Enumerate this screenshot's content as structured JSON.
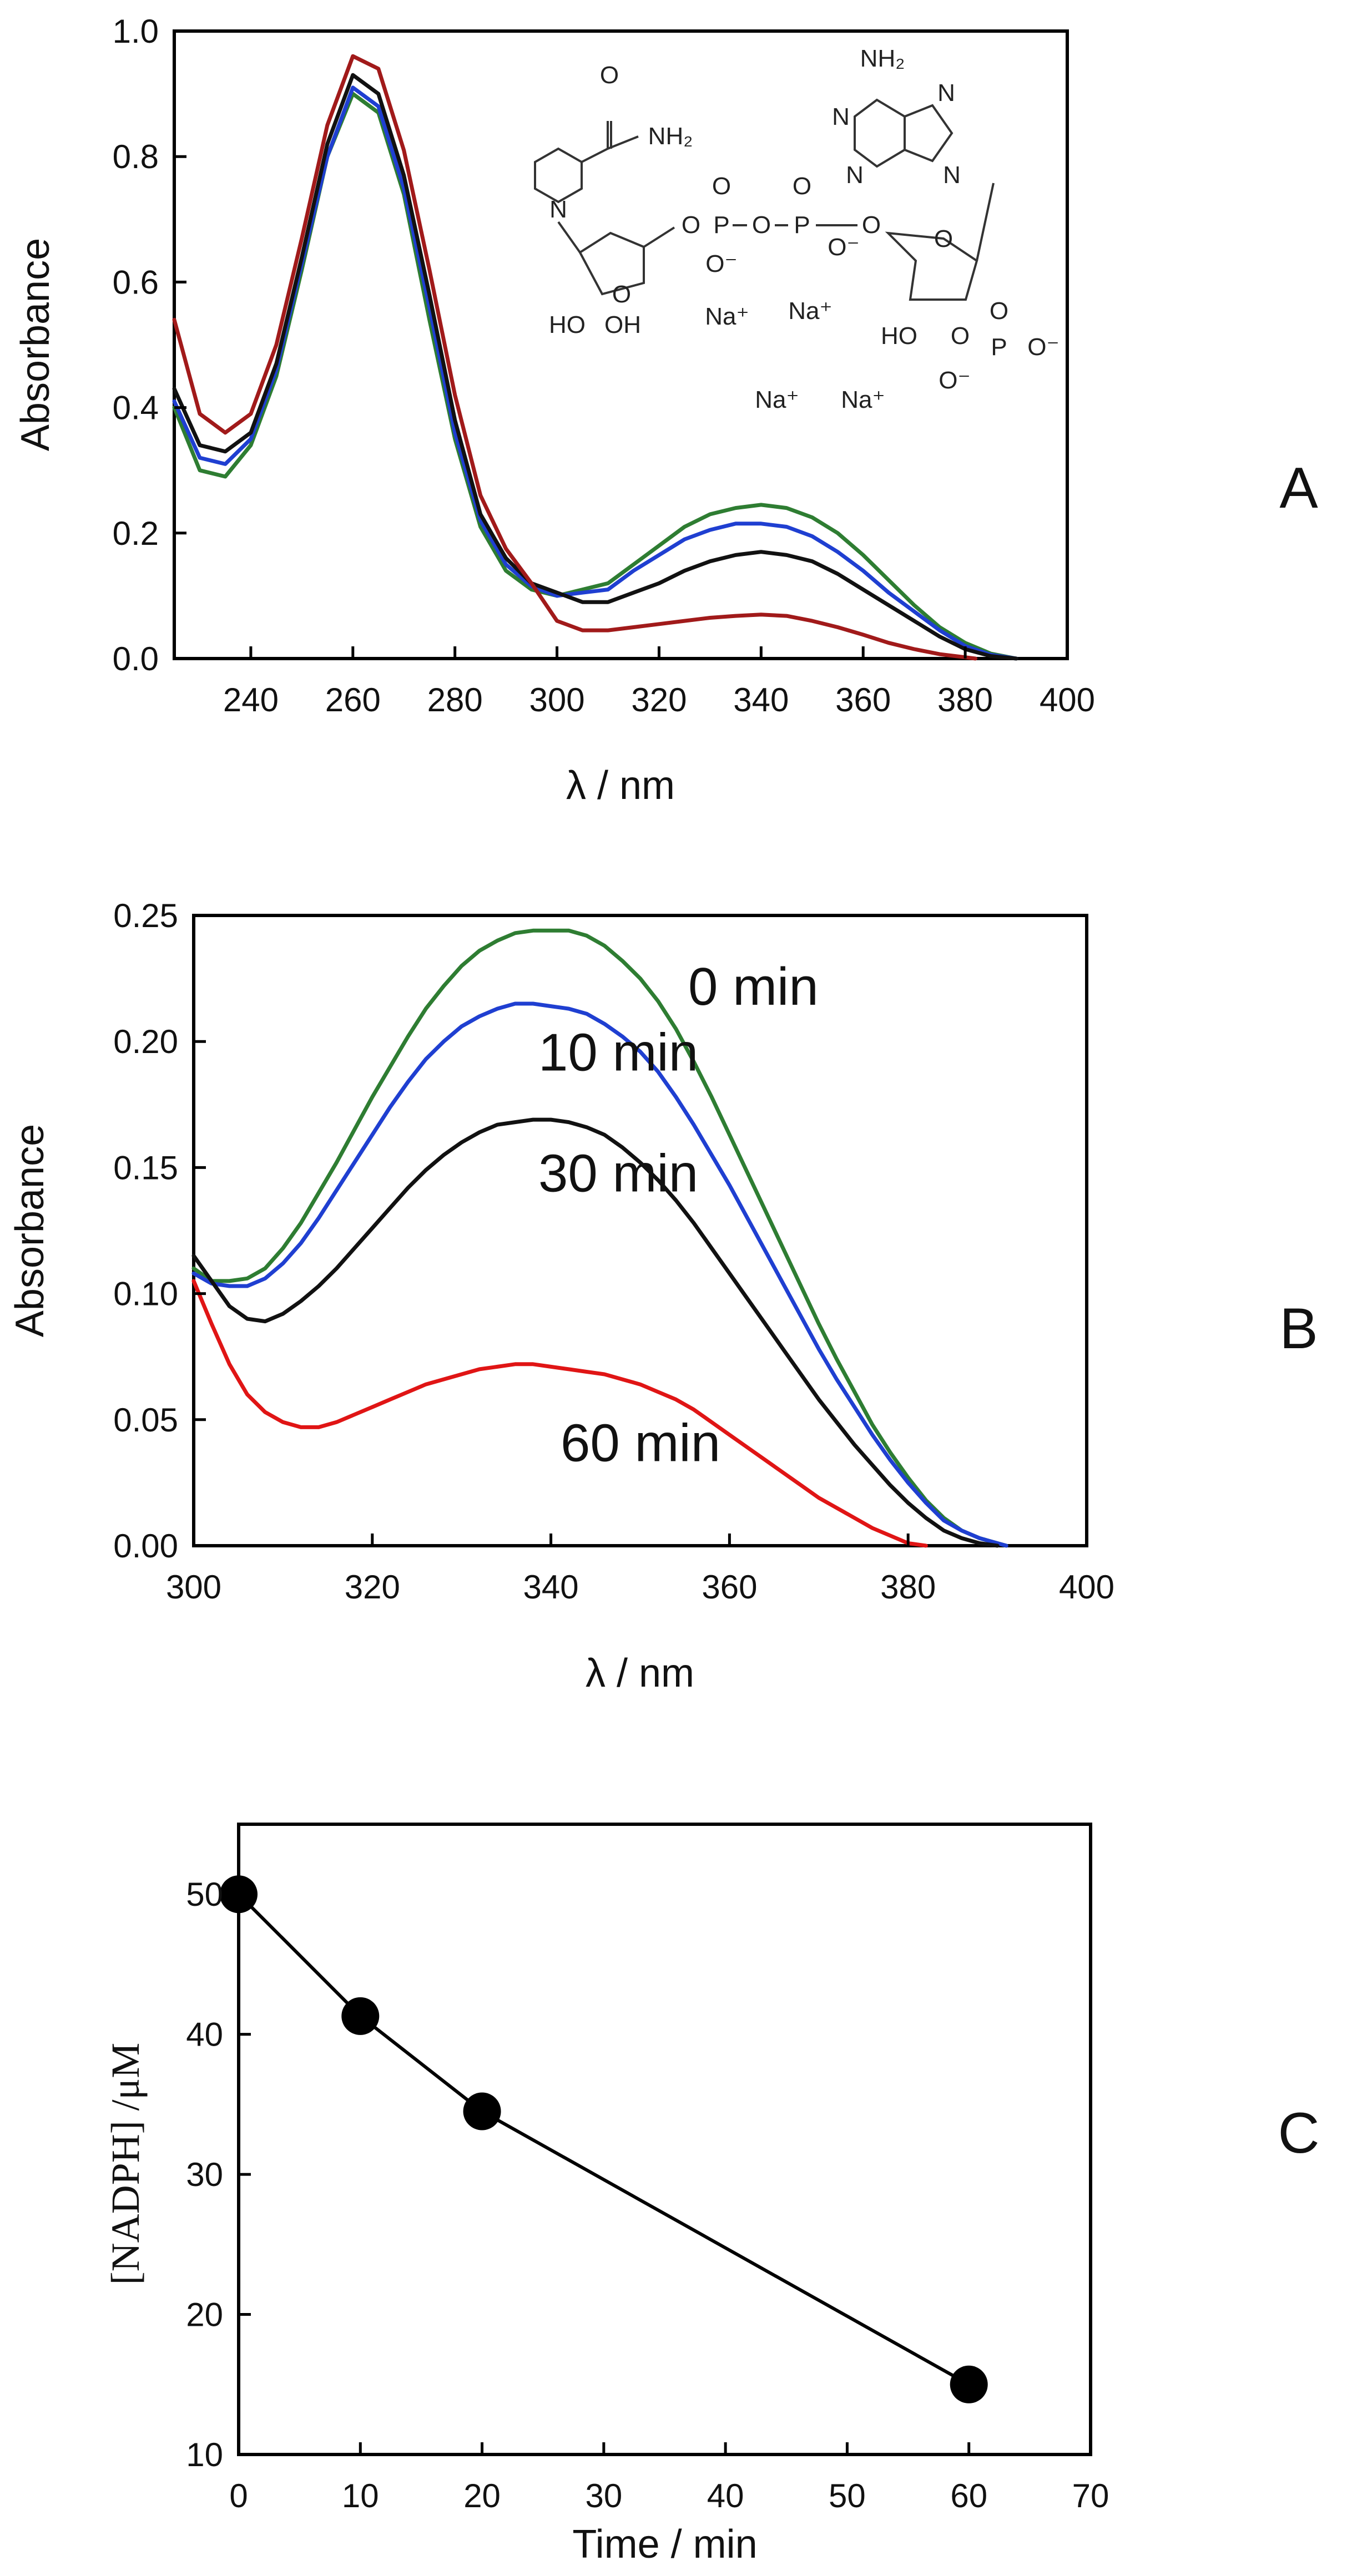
{
  "chart_data": [
    {
      "id": "A",
      "type": "line",
      "panel_label": "A",
      "title": "",
      "xlabel": "λ / nm",
      "ylabel": "Absorbance",
      "xlim": [
        225,
        400
      ],
      "ylim": [
        0,
        1.0
      ],
      "xticks": [
        240,
        260,
        280,
        300,
        320,
        340,
        360,
        380,
        400
      ],
      "yticks": [
        0.0,
        0.2,
        0.4,
        0.6,
        0.8,
        1.0
      ],
      "xtick_labels": [
        "240",
        "260",
        "280",
        "300",
        "320",
        "340",
        "360",
        "380",
        "400"
      ],
      "ytick_labels": [
        "0.0",
        "0.2",
        "0.4",
        "0.6",
        "0.8",
        "1.0"
      ],
      "grid": false,
      "legend": "none",
      "inset_structure": {
        "labels": [
          "NH₂",
          "NH₂",
          "N",
          "N",
          "N",
          "N",
          "N",
          "O",
          "O",
          "O",
          "O",
          "O",
          "O",
          "O",
          "O",
          "O",
          "O",
          "P",
          "P",
          "P",
          "O⁻",
          "O⁻",
          "O⁻",
          "O⁻",
          "HO",
          "OH",
          "HO",
          "Na⁺",
          "Na⁺",
          "Na⁺",
          "Na⁺"
        ]
      },
      "series": [
        {
          "color": "#2e7d32",
          "x": [
            225,
            230,
            235,
            240,
            245,
            250,
            255,
            260,
            265,
            270,
            275,
            280,
            285,
            290,
            295,
            300,
            305,
            310,
            315,
            320,
            325,
            330,
            335,
            340,
            345,
            350,
            355,
            360,
            365,
            370,
            375,
            380,
            385,
            390
          ],
          "y": [
            0.4,
            0.3,
            0.29,
            0.34,
            0.45,
            0.62,
            0.8,
            0.9,
            0.87,
            0.74,
            0.54,
            0.35,
            0.21,
            0.14,
            0.11,
            0.1,
            0.11,
            0.12,
            0.15,
            0.18,
            0.21,
            0.23,
            0.24,
            0.245,
            0.24,
            0.225,
            0.2,
            0.165,
            0.125,
            0.085,
            0.05,
            0.025,
            0.008,
            0.0
          ]
        },
        {
          "color": "#1f3fd1",
          "x": [
            225,
            230,
            235,
            240,
            245,
            250,
            255,
            260,
            265,
            270,
            275,
            280,
            285,
            290,
            295,
            300,
            305,
            310,
            315,
            320,
            325,
            330,
            335,
            340,
            345,
            350,
            355,
            360,
            365,
            370,
            375,
            380,
            385,
            390
          ],
          "y": [
            0.41,
            0.32,
            0.31,
            0.35,
            0.46,
            0.63,
            0.8,
            0.91,
            0.88,
            0.75,
            0.56,
            0.36,
            0.22,
            0.15,
            0.115,
            0.1,
            0.105,
            0.11,
            0.14,
            0.165,
            0.19,
            0.205,
            0.215,
            0.215,
            0.21,
            0.195,
            0.17,
            0.14,
            0.105,
            0.075,
            0.045,
            0.02,
            0.006,
            0.0
          ]
        },
        {
          "color": "#111111",
          "x": [
            225,
            230,
            235,
            240,
            245,
            250,
            255,
            260,
            265,
            270,
            275,
            280,
            285,
            290,
            295,
            300,
            305,
            310,
            315,
            320,
            325,
            330,
            335,
            340,
            345,
            350,
            355,
            360,
            365,
            370,
            375,
            380,
            385,
            390
          ],
          "y": [
            0.43,
            0.34,
            0.33,
            0.36,
            0.47,
            0.64,
            0.82,
            0.93,
            0.9,
            0.77,
            0.58,
            0.38,
            0.23,
            0.16,
            0.12,
            0.105,
            0.09,
            0.09,
            0.105,
            0.12,
            0.14,
            0.155,
            0.165,
            0.17,
            0.165,
            0.155,
            0.135,
            0.11,
            0.085,
            0.06,
            0.035,
            0.015,
            0.004,
            0.0
          ]
        },
        {
          "color": "#a11a1a",
          "x": [
            225,
            230,
            235,
            240,
            245,
            250,
            255,
            260,
            265,
            270,
            275,
            280,
            285,
            290,
            295,
            300,
            305,
            310,
            315,
            320,
            325,
            330,
            335,
            340,
            345,
            350,
            355,
            360,
            365,
            370,
            375,
            380,
            382
          ],
          "y": [
            0.54,
            0.39,
            0.36,
            0.39,
            0.5,
            0.67,
            0.85,
            0.96,
            0.94,
            0.81,
            0.62,
            0.42,
            0.26,
            0.175,
            0.12,
            0.06,
            0.045,
            0.045,
            0.05,
            0.055,
            0.06,
            0.065,
            0.068,
            0.07,
            0.068,
            0.06,
            0.05,
            0.038,
            0.025,
            0.015,
            0.007,
            0.002,
            0.0
          ]
        }
      ]
    },
    {
      "id": "B",
      "type": "line",
      "panel_label": "B",
      "title": "",
      "xlabel": "λ / nm",
      "ylabel": "Absorbance",
      "xlim": [
        300,
        400
      ],
      "ylim": [
        0,
        0.25
      ],
      "xticks": [
        300,
        320,
        340,
        360,
        380,
        400
      ],
      "yticks": [
        0.0,
        0.05,
        0.1,
        0.15,
        0.2,
        0.25
      ],
      "xtick_labels": [
        "300",
        "320",
        "340",
        "360",
        "380",
        "400"
      ],
      "ytick_labels": [
        "0.00",
        "0.05",
        "0.10",
        "0.15",
        "0.20",
        "0.25"
      ],
      "grid": false,
      "legend": "inline labels",
      "series": [
        {
          "name": "0 min",
          "color": "#2e7d32",
          "label_pos": [
            0.3,
            0.222
          ],
          "x": [
            300,
            302,
            304,
            306,
            308,
            310,
            312,
            314,
            316,
            318,
            320,
            322,
            324,
            326,
            328,
            330,
            332,
            334,
            336,
            338,
            340,
            342,
            344,
            346,
            348,
            350,
            352,
            354,
            356,
            358,
            360,
            362,
            364,
            366,
            368,
            370,
            372,
            374,
            376,
            378,
            380,
            382,
            384,
            386,
            388,
            390,
            391
          ],
          "y": [
            0.11,
            0.105,
            0.105,
            0.106,
            0.11,
            0.118,
            0.128,
            0.14,
            0.152,
            0.165,
            0.178,
            0.19,
            0.202,
            0.213,
            0.222,
            0.23,
            0.236,
            0.24,
            0.243,
            0.244,
            0.244,
            0.244,
            0.242,
            0.238,
            0.232,
            0.225,
            0.216,
            0.205,
            0.192,
            0.178,
            0.163,
            0.148,
            0.133,
            0.118,
            0.103,
            0.088,
            0.074,
            0.061,
            0.048,
            0.037,
            0.027,
            0.018,
            0.011,
            0.006,
            0.003,
            0.001,
            0.0
          ]
        },
        {
          "name": "10 min",
          "color": "#1f3fd1",
          "label_pos": [
            0.3,
            0.196
          ],
          "x": [
            300,
            302,
            304,
            306,
            308,
            310,
            312,
            314,
            316,
            318,
            320,
            322,
            324,
            326,
            328,
            330,
            332,
            334,
            336,
            338,
            340,
            342,
            344,
            346,
            348,
            350,
            352,
            354,
            356,
            358,
            360,
            362,
            364,
            366,
            368,
            370,
            372,
            374,
            376,
            378,
            380,
            382,
            384,
            386,
            388,
            390,
            391
          ],
          "y": [
            0.108,
            0.104,
            0.103,
            0.103,
            0.106,
            0.112,
            0.12,
            0.13,
            0.141,
            0.152,
            0.163,
            0.174,
            0.184,
            0.193,
            0.2,
            0.206,
            0.21,
            0.213,
            0.215,
            0.215,
            0.214,
            0.213,
            0.211,
            0.207,
            0.202,
            0.196,
            0.188,
            0.178,
            0.167,
            0.155,
            0.143,
            0.13,
            0.117,
            0.104,
            0.091,
            0.078,
            0.066,
            0.055,
            0.044,
            0.034,
            0.025,
            0.017,
            0.01,
            0.006,
            0.003,
            0.001,
            0.0
          ]
        },
        {
          "name": "30 min",
          "color": "#111111",
          "label_pos": [
            0.3,
            0.148
          ],
          "x": [
            300,
            302,
            304,
            306,
            308,
            310,
            312,
            314,
            316,
            318,
            320,
            322,
            324,
            326,
            328,
            330,
            332,
            334,
            336,
            338,
            340,
            342,
            344,
            346,
            348,
            350,
            352,
            354,
            356,
            358,
            360,
            362,
            364,
            366,
            368,
            370,
            372,
            374,
            376,
            378,
            380,
            382,
            384,
            386,
            388,
            390
          ],
          "y": [
            0.115,
            0.105,
            0.095,
            0.09,
            0.089,
            0.092,
            0.097,
            0.103,
            0.11,
            0.118,
            0.126,
            0.134,
            0.142,
            0.149,
            0.155,
            0.16,
            0.164,
            0.167,
            0.168,
            0.169,
            0.169,
            0.168,
            0.166,
            0.163,
            0.158,
            0.152,
            0.145,
            0.137,
            0.128,
            0.118,
            0.108,
            0.098,
            0.088,
            0.078,
            0.068,
            0.058,
            0.049,
            0.04,
            0.032,
            0.024,
            0.017,
            0.011,
            0.006,
            0.003,
            0.001,
            0.0
          ]
        },
        {
          "name": "60 min",
          "color": "#e01515",
          "label_pos": [
            0.3,
            0.041
          ],
          "x": [
            300,
            302,
            304,
            306,
            308,
            310,
            312,
            314,
            316,
            318,
            320,
            322,
            324,
            326,
            328,
            330,
            332,
            334,
            336,
            338,
            340,
            342,
            344,
            346,
            348,
            350,
            352,
            354,
            356,
            358,
            360,
            362,
            364,
            366,
            368,
            370,
            372,
            374,
            376,
            378,
            380,
            382
          ],
          "y": [
            0.105,
            0.088,
            0.072,
            0.06,
            0.053,
            0.049,
            0.047,
            0.047,
            0.049,
            0.052,
            0.055,
            0.058,
            0.061,
            0.064,
            0.066,
            0.068,
            0.07,
            0.071,
            0.072,
            0.072,
            0.071,
            0.07,
            0.069,
            0.068,
            0.066,
            0.064,
            0.061,
            0.058,
            0.054,
            0.049,
            0.044,
            0.039,
            0.034,
            0.029,
            0.024,
            0.019,
            0.015,
            0.011,
            0.007,
            0.004,
            0.001,
            0.0
          ]
        }
      ]
    },
    {
      "id": "C",
      "type": "line",
      "panel_label": "C",
      "title": "",
      "xlabel": "Time / min",
      "ylabel": "[NADPH] /μM",
      "xlim": [
        0,
        70
      ],
      "ylim": [
        10,
        55
      ],
      "xticks": [
        0,
        10,
        20,
        30,
        40,
        50,
        60,
        70
      ],
      "yticks": [
        10,
        20,
        30,
        40,
        50
      ],
      "xtick_labels": [
        "0",
        "10",
        "20",
        "30",
        "40",
        "50",
        "60",
        "70"
      ],
      "ytick_labels": [
        "10",
        "20",
        "30",
        "40",
        "50"
      ],
      "grid": false,
      "legend": "none",
      "series": [
        {
          "color": "#000000",
          "markers": true,
          "x": [
            0,
            10,
            20,
            60
          ],
          "y": [
            50.0,
            41.3,
            34.5,
            15.0
          ]
        }
      ]
    }
  ]
}
